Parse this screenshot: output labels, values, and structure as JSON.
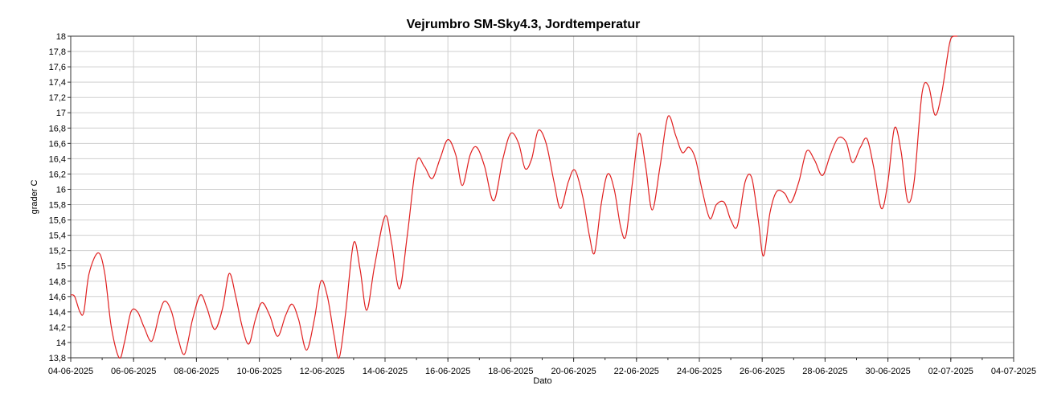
{
  "chart_data": {
    "type": "line",
    "title": "Vejrumbro SM-Sky4.3, Jordtemperatur",
    "xlabel": "Dato",
    "ylabel": "grader C",
    "xlim": [
      "2025-06-04",
      "2025-07-04"
    ],
    "ylim": [
      13.8,
      18
    ],
    "grid": true,
    "x_ticks": [
      "04-06-2025",
      "06-06-2025",
      "08-06-2025",
      "10-06-2025",
      "12-06-2025",
      "14-06-2025",
      "16-06-2025",
      "18-06-2025",
      "20-06-2025",
      "22-06-2025",
      "24-06-2025",
      "26-06-2025",
      "28-06-2025",
      "30-06-2025",
      "02-07-2025",
      "04-07-2025"
    ],
    "y_ticks": [
      "13,8",
      "14",
      "14,2",
      "14,4",
      "14,6",
      "14,8",
      "15",
      "15,2",
      "15,4",
      "15,6",
      "15,8",
      "16",
      "16,2",
      "16,4",
      "16,6",
      "16,8",
      "17",
      "17,2",
      "17,4",
      "17,6",
      "17,8",
      "18"
    ],
    "series": [
      {
        "color": "#e02020",
        "points": [
          [
            "2025-06-04 00:00",
            14.62
          ],
          [
            "2025-06-04 03:00",
            14.6
          ],
          [
            "2025-06-04 07:00",
            14.4
          ],
          [
            "2025-06-04 10:00",
            14.4
          ],
          [
            "2025-06-04 14:00",
            14.9
          ],
          [
            "2025-06-04 21:00",
            15.17
          ],
          [
            "2025-06-05 02:00",
            14.9
          ],
          [
            "2025-06-05 07:00",
            14.2
          ],
          [
            "2025-06-05 13:00",
            13.8
          ],
          [
            "2025-06-05 17:00",
            14.0
          ],
          [
            "2025-06-05 22:00",
            14.4
          ],
          [
            "2025-06-06 03:00",
            14.4
          ],
          [
            "2025-06-06 08:00",
            14.2
          ],
          [
            "2025-06-06 14:00",
            14.02
          ],
          [
            "2025-06-06 20:00",
            14.4
          ],
          [
            "2025-06-07 00:00",
            14.54
          ],
          [
            "2025-06-07 05:00",
            14.4
          ],
          [
            "2025-06-07 10:00",
            14.05
          ],
          [
            "2025-06-07 15:00",
            13.85
          ],
          [
            "2025-06-07 21:00",
            14.3
          ],
          [
            "2025-06-08 03:00",
            14.62
          ],
          [
            "2025-06-08 08:00",
            14.45
          ],
          [
            "2025-06-08 14:00",
            14.17
          ],
          [
            "2025-06-08 20:00",
            14.45
          ],
          [
            "2025-06-09 01:00",
            14.9
          ],
          [
            "2025-06-09 06:00",
            14.6
          ],
          [
            "2025-06-09 11:00",
            14.2
          ],
          [
            "2025-06-09 16:00",
            13.98
          ],
          [
            "2025-06-09 21:00",
            14.3
          ],
          [
            "2025-06-10 02:00",
            14.52
          ],
          [
            "2025-06-10 08:00",
            14.35
          ],
          [
            "2025-06-10 14:00",
            14.08
          ],
          [
            "2025-06-10 20:00",
            14.35
          ],
          [
            "2025-06-11 01:00",
            14.5
          ],
          [
            "2025-06-11 06:00",
            14.3
          ],
          [
            "2025-06-11 12:00",
            13.9
          ],
          [
            "2025-06-11 18:00",
            14.3
          ],
          [
            "2025-06-11 23:00",
            14.8
          ],
          [
            "2025-06-12 04:00",
            14.6
          ],
          [
            "2025-06-12 09:00",
            14.1
          ],
          [
            "2025-06-12 13:00",
            13.8
          ],
          [
            "2025-06-12 18:00",
            14.4
          ],
          [
            "2025-06-13 00:00",
            15.3
          ],
          [
            "2025-06-13 05:00",
            14.95
          ],
          [
            "2025-06-13 10:00",
            14.42
          ],
          [
            "2025-06-13 16:00",
            15.0
          ],
          [
            "2025-06-14 00:00",
            15.65
          ],
          [
            "2025-06-14 05:00",
            15.3
          ],
          [
            "2025-06-14 11:00",
            14.7
          ],
          [
            "2025-06-14 17:00",
            15.4
          ],
          [
            "2025-06-15 00:00",
            16.35
          ],
          [
            "2025-06-15 06:00",
            16.3
          ],
          [
            "2025-06-15 12:00",
            16.14
          ],
          [
            "2025-06-15 18:00",
            16.4
          ],
          [
            "2025-06-16 00:00",
            16.65
          ],
          [
            "2025-06-16 06:00",
            16.45
          ],
          [
            "2025-06-16 11:00",
            16.05
          ],
          [
            "2025-06-16 17:00",
            16.45
          ],
          [
            "2025-06-16 22:00",
            16.55
          ],
          [
            "2025-06-17 04:00",
            16.3
          ],
          [
            "2025-06-17 11:00",
            15.85
          ],
          [
            "2025-06-17 18:00",
            16.4
          ],
          [
            "2025-06-18 00:00",
            16.73
          ],
          [
            "2025-06-18 06:00",
            16.6
          ],
          [
            "2025-06-18 11:00",
            16.27
          ],
          [
            "2025-06-18 16:00",
            16.4
          ],
          [
            "2025-06-18 21:00",
            16.77
          ],
          [
            "2025-06-19 03:00",
            16.6
          ],
          [
            "2025-06-19 09:00",
            16.1
          ],
          [
            "2025-06-19 14:00",
            15.75
          ],
          [
            "2025-06-19 20:00",
            16.1
          ],
          [
            "2025-06-20 01:00",
            16.25
          ],
          [
            "2025-06-20 07:00",
            15.9
          ],
          [
            "2025-06-20 12:00",
            15.4
          ],
          [
            "2025-06-20 16:00",
            15.17
          ],
          [
            "2025-06-20 21:00",
            15.8
          ],
          [
            "2025-06-21 02:00",
            16.2
          ],
          [
            "2025-06-21 07:00",
            16.0
          ],
          [
            "2025-06-21 12:00",
            15.5
          ],
          [
            "2025-06-21 16:00",
            15.4
          ],
          [
            "2025-06-21 21:00",
            16.1
          ],
          [
            "2025-06-22 02:00",
            16.73
          ],
          [
            "2025-06-22 07:00",
            16.3
          ],
          [
            "2025-06-22 12:00",
            15.73
          ],
          [
            "2025-06-22 18:00",
            16.3
          ],
          [
            "2025-06-23 00:00",
            16.95
          ],
          [
            "2025-06-23 06:00",
            16.7
          ],
          [
            "2025-06-23 11:00",
            16.48
          ],
          [
            "2025-06-23 16:00",
            16.55
          ],
          [
            "2025-06-23 21:00",
            16.4
          ],
          [
            "2025-06-24 02:00",
            16.0
          ],
          [
            "2025-06-24 08:00",
            15.62
          ],
          [
            "2025-06-24 13:00",
            15.8
          ],
          [
            "2025-06-24 19:00",
            15.83
          ],
          [
            "2025-06-25 00:00",
            15.6
          ],
          [
            "2025-06-25 05:00",
            15.52
          ],
          [
            "2025-06-25 11:00",
            16.1
          ],
          [
            "2025-06-25 16:00",
            16.15
          ],
          [
            "2025-06-25 21:00",
            15.6
          ],
          [
            "2025-06-26 01:00",
            15.13
          ],
          [
            "2025-06-26 06:00",
            15.7
          ],
          [
            "2025-06-26 11:00",
            15.97
          ],
          [
            "2025-06-26 17:00",
            15.95
          ],
          [
            "2025-06-26 22:00",
            15.83
          ],
          [
            "2025-06-27 04:00",
            16.1
          ],
          [
            "2025-06-27 10:00",
            16.5
          ],
          [
            "2025-06-27 16:00",
            16.38
          ],
          [
            "2025-06-27 22:00",
            16.18
          ],
          [
            "2025-06-28 04:00",
            16.45
          ],
          [
            "2025-06-28 10:00",
            16.67
          ],
          [
            "2025-06-28 16:00",
            16.62
          ],
          [
            "2025-06-28 21:00",
            16.35
          ],
          [
            "2025-06-29 03:00",
            16.55
          ],
          [
            "2025-06-29 08:00",
            16.66
          ],
          [
            "2025-06-29 13:00",
            16.3
          ],
          [
            "2025-06-29 19:00",
            15.75
          ],
          [
            "2025-06-30 00:00",
            16.1
          ],
          [
            "2025-06-30 05:00",
            16.8
          ],
          [
            "2025-06-30 10:00",
            16.5
          ],
          [
            "2025-06-30 15:00",
            15.85
          ],
          [
            "2025-06-30 20:00",
            16.1
          ],
          [
            "2025-07-01 02:00",
            17.25
          ],
          [
            "2025-07-01 07:00",
            17.35
          ],
          [
            "2025-07-01 12:00",
            16.97
          ],
          [
            "2025-07-01 17:00",
            17.25
          ],
          [
            "2025-07-01 23:00",
            17.9
          ],
          [
            "2025-07-02 02:00",
            18.0
          ]
        ]
      }
    ]
  }
}
